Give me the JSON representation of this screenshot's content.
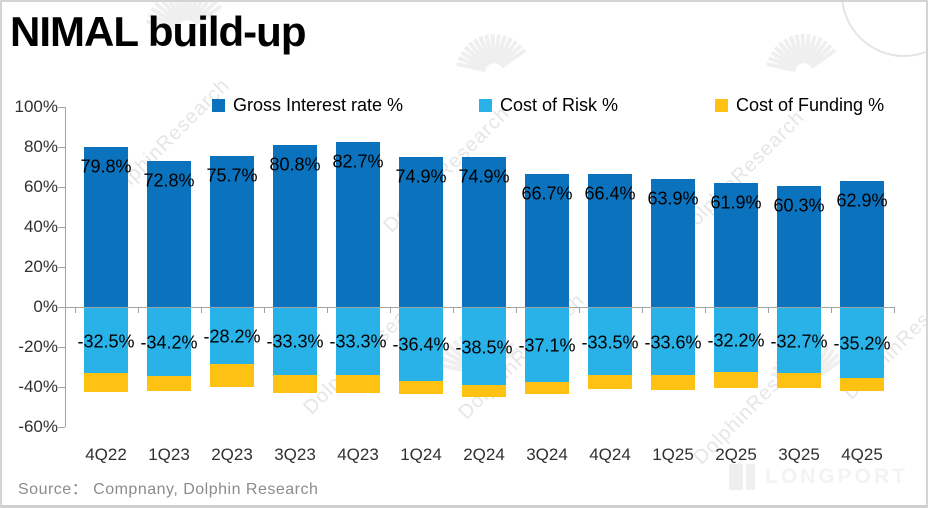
{
  "title": "NIMAL build-up",
  "source_text": "Source： Compnany, Dolphin Research",
  "watermark": {
    "text": "DolphinResearch",
    "logo_text": "LONGPORT"
  },
  "colors": {
    "gross_blue": "#0B72BD",
    "risk_light_blue": "#29B2E8",
    "funding_yellow": "#FFC112",
    "axis_grey": "#a3a3a3",
    "watermark_grey": "#bdbdbd"
  },
  "chart_data": {
    "type": "bar",
    "stacked": true,
    "title": "NIMAL build-up",
    "xlabel": "",
    "ylabel": "",
    "grid": false,
    "legend_position": "top",
    "ylim": [
      -60,
      100
    ],
    "ytick_step": 20,
    "ytick_labels": [
      "100%",
      "80%",
      "60%",
      "40%",
      "20%",
      "0%",
      "-20%",
      "-40%",
      "-60%"
    ],
    "categories": [
      "4Q22",
      "1Q23",
      "2Q23",
      "3Q23",
      "4Q23",
      "1Q24",
      "2Q24",
      "3Q24",
      "4Q24",
      "1Q25",
      "2Q25",
      "3Q25",
      "4Q25"
    ],
    "series": [
      {
        "name": "Gross Interest rate %",
        "color_key": "gross_blue",
        "labels_visible": true,
        "values": [
          79.8,
          72.8,
          75.7,
          80.8,
          82.7,
          74.9,
          74.9,
          66.7,
          66.4,
          63.9,
          61.9,
          60.3,
          62.9
        ]
      },
      {
        "name": "Cost of Risk %",
        "color_key": "risk_light_blue",
        "labels_visible": true,
        "values": [
          -32.5,
          -34.2,
          -28.2,
          -33.3,
          -33.3,
          -36.4,
          -38.5,
          -37.1,
          -33.5,
          -33.6,
          -32.2,
          -32.7,
          -35.2
        ]
      },
      {
        "name": "Cost of Funding %",
        "color_key": "funding_yellow",
        "labels_visible": false,
        "values": [
          -9.5,
          -7.5,
          -11.3,
          -9.3,
          -9.3,
          -6.5,
          -5.8,
          -6.0,
          -7.2,
          -7.5,
          -8.0,
          -7.5,
          -6.2
        ]
      }
    ]
  }
}
